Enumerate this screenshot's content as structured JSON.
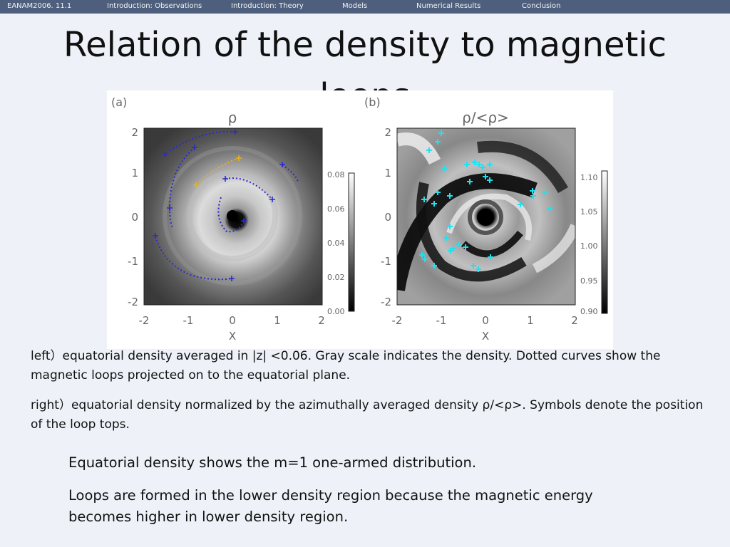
{
  "nav": {
    "items": [
      "EANAM2006. 11.1",
      "Introduction: Observations",
      "Introduction: Theory",
      "Models",
      "Numerical Results",
      "Conclusion"
    ]
  },
  "slide": {
    "title_line1": "Relation of the density to magnetic",
    "title_line2": "loops"
  },
  "figure": {
    "panels": [
      {
        "label": "(a)",
        "title": "ρ",
        "xlabel": "X",
        "axis_ticks": [
          "-2",
          "-1",
          "0",
          "1",
          "2"
        ],
        "colorbar_ticks": [
          "0.00",
          "0.02",
          "0.04",
          "0.06",
          "0.08"
        ]
      },
      {
        "label": "(b)",
        "title": "ρ/<ρ>",
        "xlabel": "X",
        "axis_ticks": [
          "-2",
          "-1",
          "0",
          "1",
          "2"
        ],
        "colorbar_ticks": [
          "0.90",
          "0.95",
          "1.00",
          "1.05",
          "1.10"
        ]
      }
    ],
    "colors": {
      "loop_curves": "#2a2ad0",
      "highlight_curve": "#e8b21a",
      "loop_top_symbols": "#22e0f0"
    }
  },
  "captions": {
    "left": "left）equatorial density averaged in |z| <0.06. Gray scale indicates the density. Dotted curves show the magnetic loops projected on to the equatorial plane.",
    "right": "right）equatorial density normalized by the azimuthally averaged density  ρ/<ρ>. Symbols denote the position of the loop tops."
  },
  "bullets": [
    "Equatorial density shows the m=1 one-armed distribution.",
    "Loops are formed in the lower density region because the magnetic energy becomes higher in lower density region."
  ]
}
